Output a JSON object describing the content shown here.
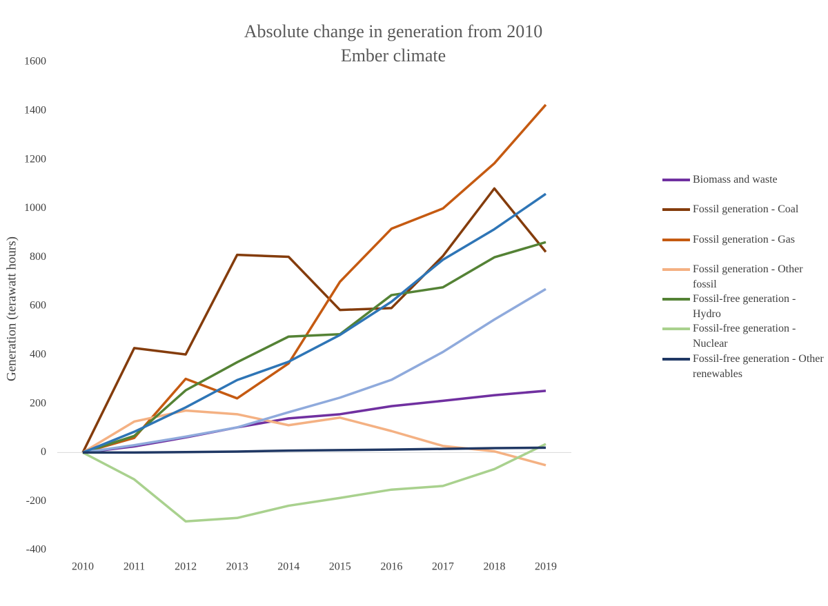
{
  "chart_data": {
    "type": "line",
    "title": "Absolute change in generation from 2010",
    "subtitle": "Ember climate",
    "y_label": "Generation (terawatt hours)",
    "categories": [
      "2010",
      "2011",
      "2012",
      "2013",
      "2014",
      "2015",
      "2016",
      "2017",
      "2018",
      "2019"
    ],
    "ylim": [
      -400,
      1600
    ],
    "yticks": [
      -400,
      -200,
      0,
      200,
      400,
      600,
      800,
      1000,
      1200,
      1400,
      1600
    ],
    "grid": false,
    "legend": "right",
    "series": [
      {
        "name": "Biomass and waste",
        "color": "#7030a0",
        "values": [
          0,
          25,
          62,
          103,
          140,
          157,
          190,
          212,
          235,
          253
        ]
      },
      {
        "name": "Fossil generation - Coal",
        "color": "#843c0c",
        "values": [
          0,
          428,
          402,
          810,
          802,
          584,
          592,
          805,
          1082,
          822
        ]
      },
      {
        "name": "Fossil generation - Gas",
        "color": "#c55a11",
        "values": [
          0,
          60,
          302,
          222,
          365,
          700,
          917,
          1000,
          1185,
          1425
        ]
      },
      {
        "name": "Fossil generation - Other fossil",
        "color": "#f4b183",
        "values": [
          0,
          127,
          172,
          157,
          112,
          143,
          88,
          27,
          5,
          -52
        ]
      },
      {
        "name": "Fossil-free generation - Hydro",
        "color": "#548235",
        "values": [
          0,
          68,
          255,
          370,
          475,
          485,
          645,
          677,
          800,
          862
        ]
      },
      {
        "name": "Fossil-free generation - Nuclear",
        "color": "#a9d18e",
        "values": [
          0,
          -110,
          -282,
          -268,
          -218,
          -186,
          -152,
          -137,
          -68,
          35
        ]
      },
      {
        "color": "#8faadc",
        "values": [
          0,
          30,
          65,
          103,
          165,
          225,
          298,
          412,
          545,
          670
        ]
      },
      {
        "color": "#2e75b6",
        "values": [
          0,
          85,
          185,
          297,
          372,
          482,
          618,
          790,
          915,
          1060
        ]
      },
      {
        "name": "Fossil-free generation - Other renewables",
        "color": "#203864",
        "values": [
          0,
          0,
          2,
          4,
          8,
          10,
          12,
          15,
          18,
          20
        ]
      }
    ]
  }
}
